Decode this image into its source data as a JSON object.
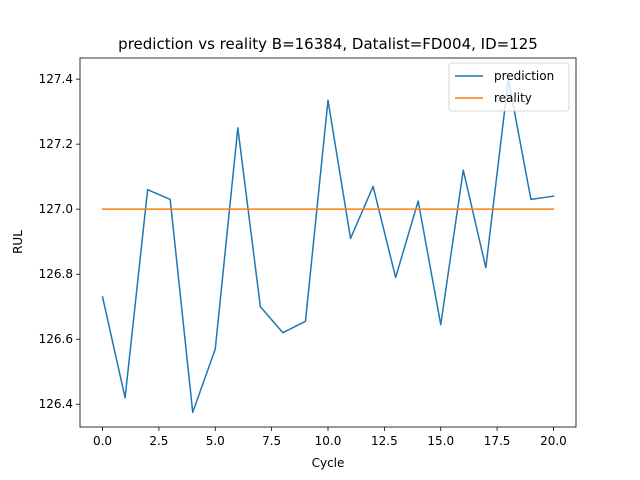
{
  "chart_data": {
    "type": "line",
    "title": "prediction vs reality B=16384, Datalist=FD004, ID=125",
    "xlabel": "Cycle",
    "ylabel": "RUL",
    "xlim": [
      -1.0,
      21.0
    ],
    "ylim": [
      126.33,
      127.465
    ],
    "x_ticks": [
      0.0,
      2.5,
      5.0,
      7.5,
      10.0,
      12.5,
      15.0,
      17.5,
      20.0
    ],
    "x_tick_labels": [
      "0.0",
      "2.5",
      "5.0",
      "7.5",
      "10.0",
      "12.5",
      "15.0",
      "17.5",
      "20.0"
    ],
    "y_ticks": [
      126.4,
      126.6,
      126.8,
      127.0,
      127.2,
      127.4
    ],
    "y_tick_labels": [
      "126.4",
      "126.6",
      "126.8",
      "127.0",
      "127.2",
      "127.4"
    ],
    "grid": false,
    "legend_position": "top-right",
    "x": [
      0,
      1,
      2,
      3,
      4,
      5,
      6,
      7,
      8,
      9,
      10,
      11,
      12,
      13,
      14,
      15,
      16,
      17,
      18,
      19,
      20
    ],
    "series": [
      {
        "name": "prediction",
        "color": "#1f77b4",
        "values": [
          126.73,
          126.42,
          127.06,
          127.03,
          126.375,
          126.57,
          127.25,
          126.7,
          126.62,
          126.655,
          127.335,
          126.91,
          127.07,
          126.79,
          127.025,
          126.645,
          127.12,
          126.82,
          127.4,
          127.03,
          127.04
        ]
      },
      {
        "name": "reality",
        "color": "#ff7f0e",
        "values": [
          127.0,
          127.0,
          127.0,
          127.0,
          127.0,
          127.0,
          127.0,
          127.0,
          127.0,
          127.0,
          127.0,
          127.0,
          127.0,
          127.0,
          127.0,
          127.0,
          127.0,
          127.0,
          127.0,
          127.0,
          127.0
        ]
      }
    ]
  }
}
